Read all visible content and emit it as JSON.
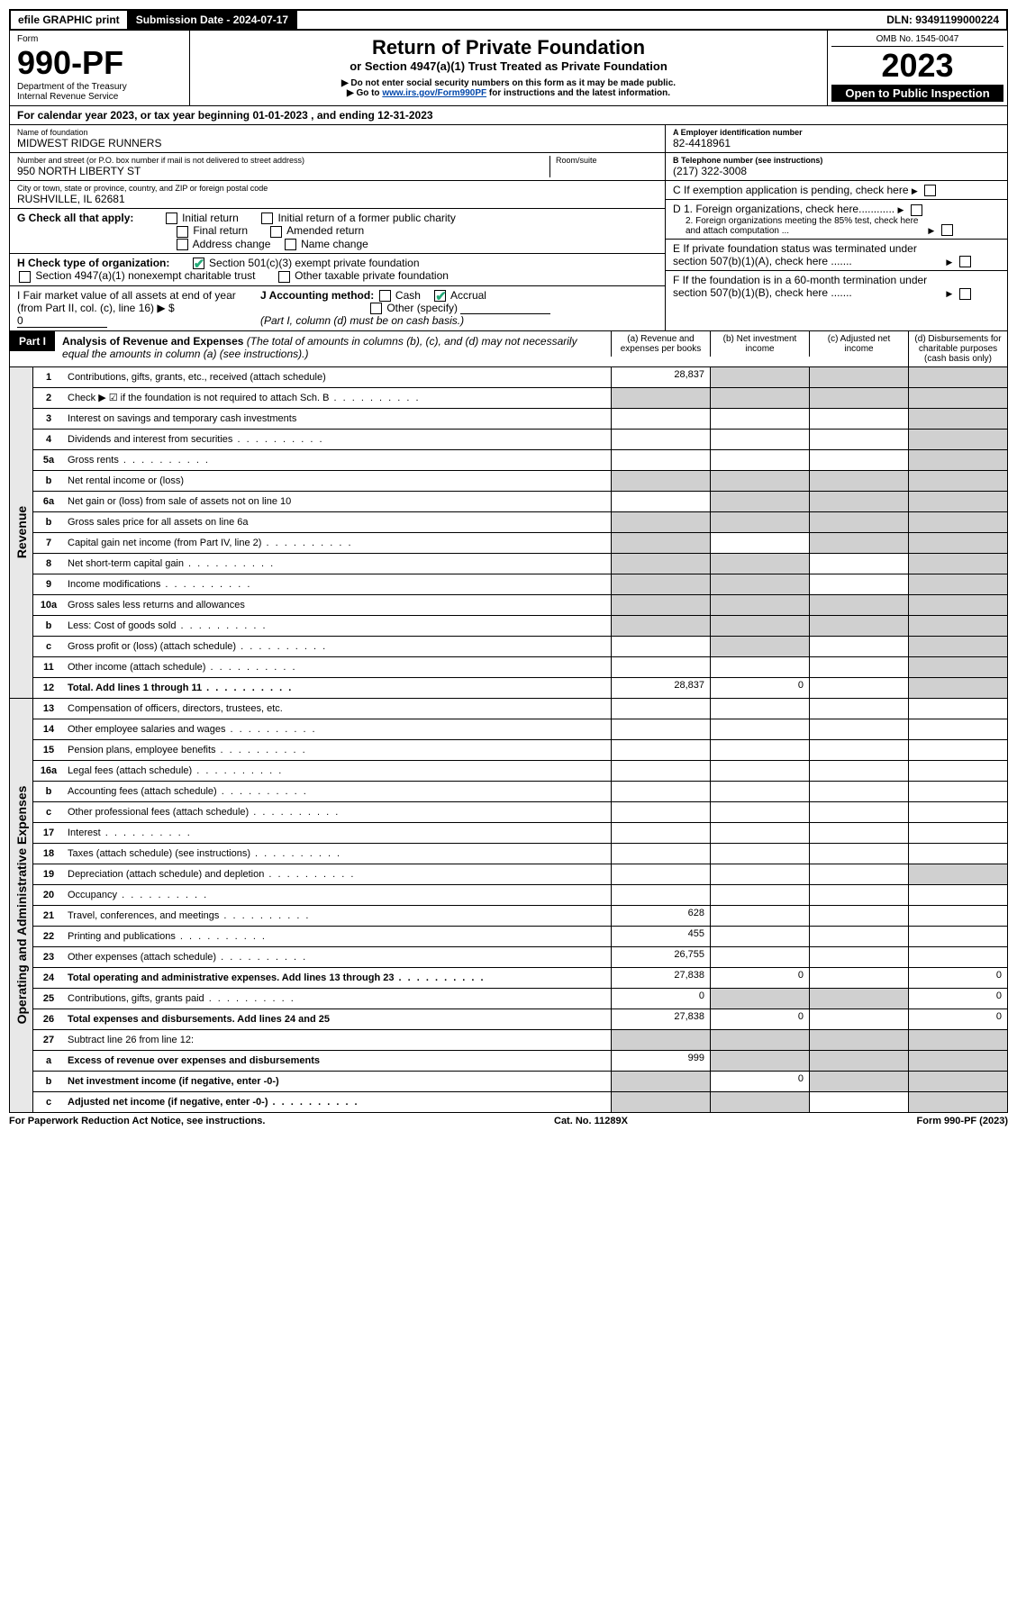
{
  "topbar": {
    "efile": "efile GRAPHIC print",
    "subdate_label": "Submission Date - 2024-07-17",
    "dln": "DLN: 93491199000224"
  },
  "header": {
    "form_word": "Form",
    "form_no": "990-PF",
    "dept": "Department of the Treasury",
    "irs": "Internal Revenue Service",
    "title": "Return of Private Foundation",
    "subtitle": "or Section 4947(a)(1) Trust Treated as Private Foundation",
    "note1": "▶ Do not enter social security numbers on this form as it may be made public.",
    "note2_pre": "▶ Go to ",
    "note2_link": "www.irs.gov/Form990PF",
    "note2_post": " for instructions and the latest information.",
    "omb": "OMB No. 1545-0047",
    "year": "2023",
    "open": "Open to Public Inspection"
  },
  "yearline": "For calendar year 2023, or tax year beginning 01-01-2023                  , and ending 12-31-2023",
  "info": {
    "name_lbl": "Name of foundation",
    "name": "MIDWEST RIDGE RUNNERS",
    "addr_lbl": "Number and street (or P.O. box number if mail is not delivered to street address)",
    "addr": "950 NORTH LIBERTY ST",
    "room_lbl": "Room/suite",
    "city_lbl": "City or town, state or province, country, and ZIP or foreign postal code",
    "city": "RUSHVILLE, IL  62681",
    "ein_lbl": "A Employer identification number",
    "ein": "82-4418961",
    "tel_lbl": "B Telephone number (see instructions)",
    "tel": "(217) 322-3008",
    "c": "C If exemption application is pending, check here",
    "d1": "D 1. Foreign organizations, check here............",
    "d2": "2. Foreign organizations meeting the 85% test, check here and attach computation ...",
    "e": "E  If private foundation status was terminated under section 507(b)(1)(A), check here .......",
    "f": "F  If the foundation is in a 60-month termination under section 507(b)(1)(B), check here .......",
    "g_lbl": "G Check all that apply:",
    "g_opts": [
      "Initial return",
      "Initial return of a former public charity",
      "Final return",
      "Amended return",
      "Address change",
      "Name change"
    ],
    "h_lbl": "H Check type of organization:",
    "h1": "Section 501(c)(3) exempt private foundation",
    "h2": "Section 4947(a)(1) nonexempt charitable trust",
    "h3": "Other taxable private foundation",
    "i_lbl": "I Fair market value of all assets at end of year (from Part II, col. (c), line 16)",
    "i_val": "0",
    "j_lbl": "J Accounting method:",
    "j_cash": "Cash",
    "j_accr": "Accrual",
    "j_other": "Other (specify)",
    "j_note": "(Part I, column (d) must be on cash basis.)"
  },
  "part1": {
    "tag": "Part I",
    "title": "Analysis of Revenue and Expenses",
    "titlenote": " (The total of amounts in columns (b), (c), and (d) may not necessarily equal the amounts in column (a) (see instructions).)",
    "col_a": "(a)   Revenue and expenses per books",
    "col_b": "(b)   Net investment income",
    "col_c": "(c)   Adjusted net income",
    "col_d": "(d)   Disbursements for charitable purposes (cash basis only)"
  },
  "revenue_label": "Revenue",
  "expense_label": "Operating and Administrative Expenses",
  "rows_rev": [
    {
      "n": "1",
      "d": "Contributions, gifts, grants, etc., received (attach schedule)",
      "a": "28,837",
      "ga": false,
      "gb": true,
      "gc": true,
      "gd": true
    },
    {
      "n": "2",
      "d": "Check ▶ ☑ if the foundation is not required to attach Sch. B",
      "dots": true,
      "ga": true,
      "gb": true,
      "gc": true,
      "gd": true,
      "bold": false
    },
    {
      "n": "3",
      "d": "Interest on savings and temporary cash investments",
      "ga": false,
      "gb": false,
      "gc": false,
      "gd": true
    },
    {
      "n": "4",
      "d": "Dividends and interest from securities",
      "dots": true,
      "ga": false,
      "gb": false,
      "gc": false,
      "gd": true
    },
    {
      "n": "5a",
      "d": "Gross rents",
      "dots": true,
      "ga": false,
      "gb": false,
      "gc": false,
      "gd": true
    },
    {
      "n": "b",
      "d": "Net rental income or (loss)",
      "ga": true,
      "gb": true,
      "gc": true,
      "gd": true
    },
    {
      "n": "6a",
      "d": "Net gain or (loss) from sale of assets not on line 10",
      "ga": false,
      "gb": true,
      "gc": true,
      "gd": true
    },
    {
      "n": "b",
      "d": "Gross sales price for all assets on line 6a",
      "ga": true,
      "gb": true,
      "gc": true,
      "gd": true
    },
    {
      "n": "7",
      "d": "Capital gain net income (from Part IV, line 2)",
      "dots": true,
      "ga": true,
      "gb": false,
      "gc": true,
      "gd": true
    },
    {
      "n": "8",
      "d": "Net short-term capital gain",
      "dots": true,
      "ga": true,
      "gb": true,
      "gc": false,
      "gd": true
    },
    {
      "n": "9",
      "d": "Income modifications",
      "dots": true,
      "ga": true,
      "gb": true,
      "gc": false,
      "gd": true
    },
    {
      "n": "10a",
      "d": "Gross sales less returns and allowances",
      "ga": true,
      "gb": true,
      "gc": true,
      "gd": true
    },
    {
      "n": "b",
      "d": "Less: Cost of goods sold",
      "dots": true,
      "ga": true,
      "gb": true,
      "gc": true,
      "gd": true
    },
    {
      "n": "c",
      "d": "Gross profit or (loss) (attach schedule)",
      "dots": true,
      "ga": false,
      "gb": true,
      "gc": false,
      "gd": true
    },
    {
      "n": "11",
      "d": "Other income (attach schedule)",
      "dots": true,
      "ga": false,
      "gb": false,
      "gc": false,
      "gd": true
    },
    {
      "n": "12",
      "d": "Total. Add lines 1 through 11",
      "dots": true,
      "bold": true,
      "a": "28,837",
      "b": "0",
      "ga": false,
      "gb": false,
      "gc": false,
      "gd": true
    }
  ],
  "rows_exp": [
    {
      "n": "13",
      "d": "Compensation of officers, directors, trustees, etc.",
      "ga": false,
      "gb": false,
      "gc": false,
      "gd": false
    },
    {
      "n": "14",
      "d": "Other employee salaries and wages",
      "dots": true,
      "ga": false,
      "gb": false,
      "gc": false,
      "gd": false
    },
    {
      "n": "15",
      "d": "Pension plans, employee benefits",
      "dots": true,
      "ga": false,
      "gb": false,
      "gc": false,
      "gd": false
    },
    {
      "n": "16a",
      "d": "Legal fees (attach schedule)",
      "dots": true,
      "ga": false,
      "gb": false,
      "gc": false,
      "gd": false
    },
    {
      "n": "b",
      "d": "Accounting fees (attach schedule)",
      "dots": true,
      "ga": false,
      "gb": false,
      "gc": false,
      "gd": false
    },
    {
      "n": "c",
      "d": "Other professional fees (attach schedule)",
      "dots": true,
      "ga": false,
      "gb": false,
      "gc": false,
      "gd": false
    },
    {
      "n": "17",
      "d": "Interest",
      "dots": true,
      "ga": false,
      "gb": false,
      "gc": false,
      "gd": false
    },
    {
      "n": "18",
      "d": "Taxes (attach schedule) (see instructions)",
      "dots": true,
      "ga": false,
      "gb": false,
      "gc": false,
      "gd": false
    },
    {
      "n": "19",
      "d": "Depreciation (attach schedule) and depletion",
      "dots": true,
      "ga": false,
      "gb": false,
      "gc": false,
      "gd": true
    },
    {
      "n": "20",
      "d": "Occupancy",
      "dots": true,
      "ga": false,
      "gb": false,
      "gc": false,
      "gd": false
    },
    {
      "n": "21",
      "d": "Travel, conferences, and meetings",
      "dots": true,
      "a": "628",
      "ga": false,
      "gb": false,
      "gc": false,
      "gd": false
    },
    {
      "n": "22",
      "d": "Printing and publications",
      "dots": true,
      "a": "455",
      "ga": false,
      "gb": false,
      "gc": false,
      "gd": false
    },
    {
      "n": "23",
      "d": "Other expenses (attach schedule)",
      "dots": true,
      "a": "26,755",
      "ga": false,
      "gb": false,
      "gc": false,
      "gd": false
    },
    {
      "n": "24",
      "d": "Total operating and administrative expenses. Add lines 13 through 23",
      "dots": true,
      "bold": true,
      "a": "27,838",
      "b": "0",
      "d4": "0",
      "ga": false,
      "gb": false,
      "gc": false,
      "gd": false
    },
    {
      "n": "25",
      "d": "Contributions, gifts, grants paid",
      "dots": true,
      "a": "0",
      "d4": "0",
      "ga": false,
      "gb": true,
      "gc": true,
      "gd": false
    },
    {
      "n": "26",
      "d": "Total expenses and disbursements. Add lines 24 and 25",
      "bold": true,
      "a": "27,838",
      "b": "0",
      "d4": "0",
      "ga": false,
      "gb": false,
      "gc": false,
      "gd": false
    },
    {
      "n": "27",
      "d": "Subtract line 26 from line 12:",
      "ga": true,
      "gb": true,
      "gc": true,
      "gd": true
    },
    {
      "n": "a",
      "d": "Excess of revenue over expenses and disbursements",
      "bold": true,
      "a": "999",
      "ga": false,
      "gb": true,
      "gc": true,
      "gd": true
    },
    {
      "n": "b",
      "d": "Net investment income (if negative, enter -0-)",
      "bold": true,
      "b": "0",
      "ga": true,
      "gb": false,
      "gc": true,
      "gd": true
    },
    {
      "n": "c",
      "d": "Adjusted net income (if negative, enter -0-)",
      "dots": true,
      "bold": true,
      "ga": true,
      "gb": true,
      "gc": false,
      "gd": true
    }
  ],
  "footer": {
    "left": "For Paperwork Reduction Act Notice, see instructions.",
    "mid": "Cat. No. 11289X",
    "right": "Form 990-PF (2023)"
  },
  "colors": {
    "grey": "#d0d0d0",
    "link": "#0047ab",
    "check": "#2a7a2a"
  }
}
